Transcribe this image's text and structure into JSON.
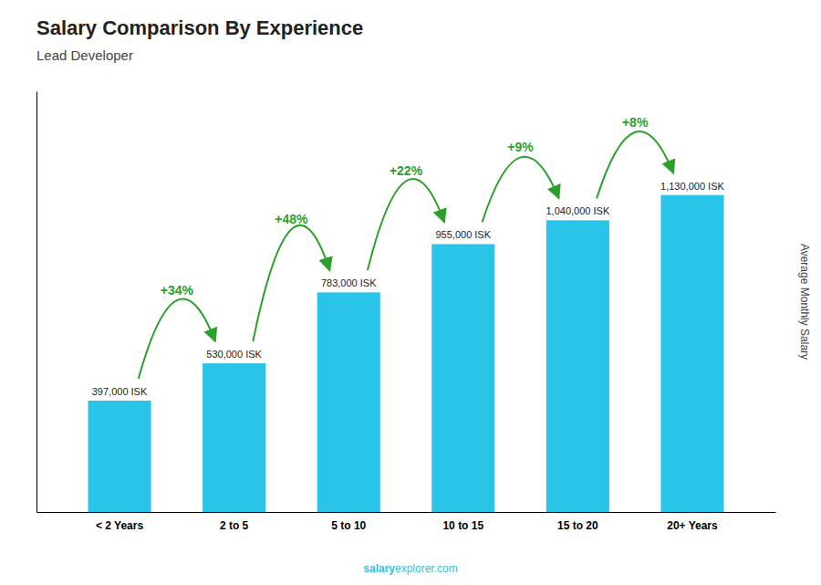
{
  "chart_data": {
    "type": "bar",
    "title": "Salary Comparison By Experience",
    "subtitle": "Lead Developer",
    "ylabel": "Average Monthly Salary",
    "categories": [
      "< 2 Years",
      "2 to 5",
      "5 to 10",
      "10 to 15",
      "15 to 20",
      "20+ Years"
    ],
    "values": [
      397000,
      530000,
      783000,
      955000,
      1040000,
      1130000
    ],
    "value_labels": [
      "397,000 ISK",
      "530,000 ISK",
      "783,000 ISK",
      "955,000 ISK",
      "1,040,000 ISK",
      "1,130,000 ISK"
    ],
    "data_labels": true,
    "color": "#29C4E8",
    "ylim": [
      0,
      1500000
    ],
    "yticks": [],
    "tick_labels": "x",
    "annotations": [
      {
        "type": "arrow",
        "text": "+34%"
      },
      {
        "type": "arrow",
        "text": "+48%"
      },
      {
        "type": "arrow",
        "text": "+22%"
      },
      {
        "type": "arrow",
        "text": "+9%"
      },
      {
        "type": "arrow",
        "text": "+8%"
      },
      {
        "type": "text",
        "text": "salary"
      },
      {
        "type": "text",
        "text": "explorer.com"
      }
    ]
  }
}
